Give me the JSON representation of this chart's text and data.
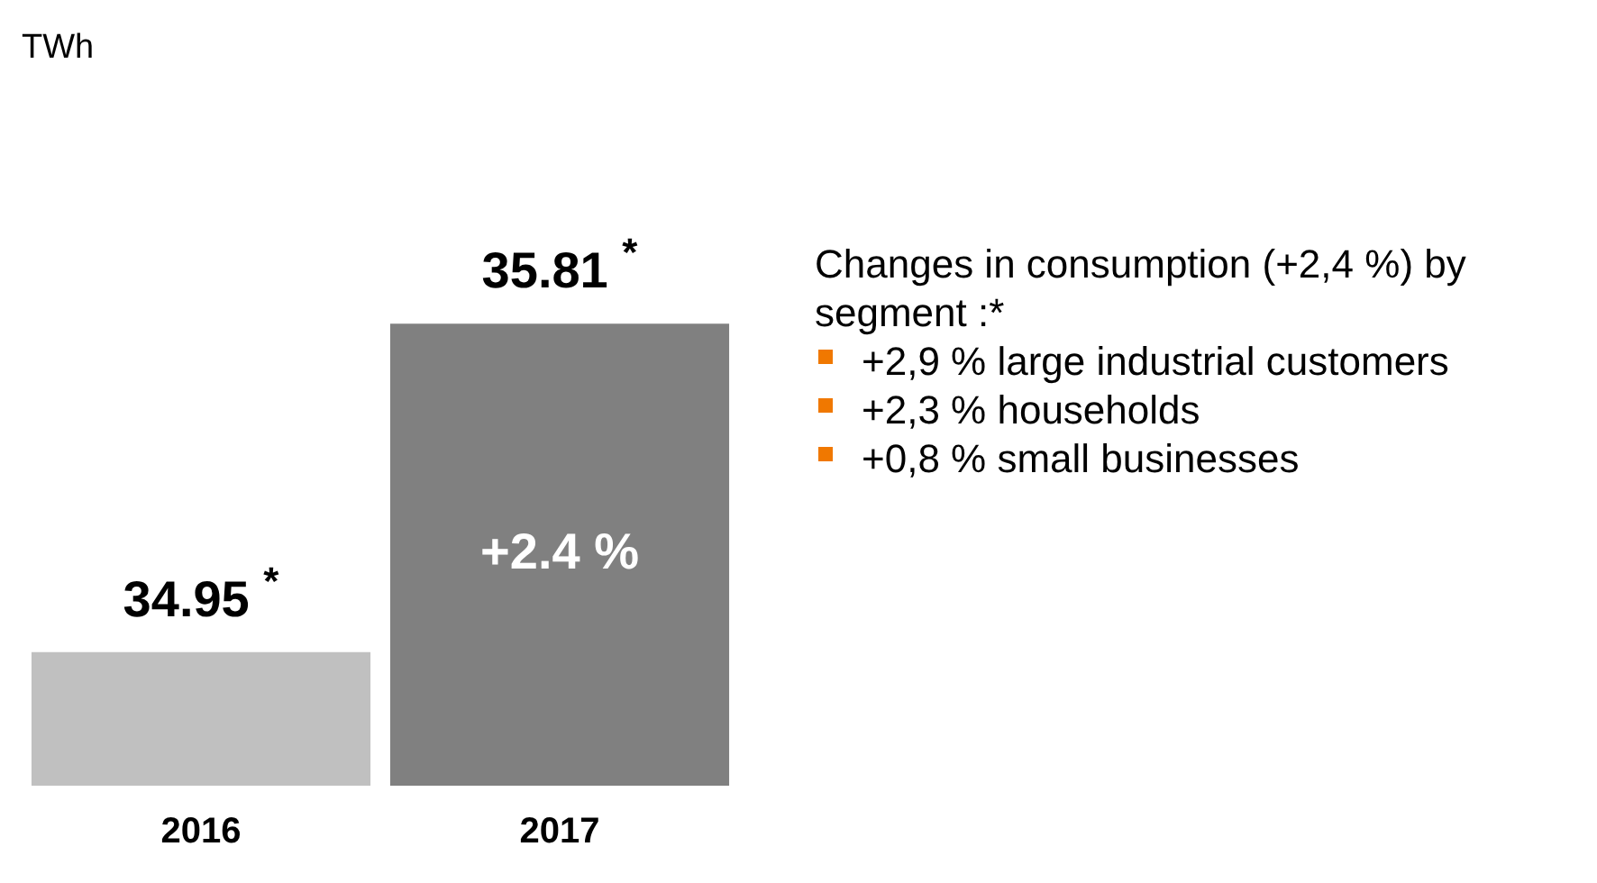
{
  "chart_data": {
    "type": "bar",
    "categories": [
      "2016",
      "2017"
    ],
    "values": [
      34.95,
      35.81
    ],
    "colors": [
      "#c0c0c0",
      "#808080"
    ],
    "value_labels": [
      "34.95 $^{*}$",
      "35.81 $^{*}$"
    ],
    "tick_labels": "x",
    "grid": false,
    "legend": false,
    "annotations": [
      "TWh",
      "+2.4 %",
      "Changes in consumption (+2,4 %) by segment :*",
      "+2,9 % large industrial customers",
      "+2,3 % households",
      "+0,8 % small businesses"
    ]
  }
}
